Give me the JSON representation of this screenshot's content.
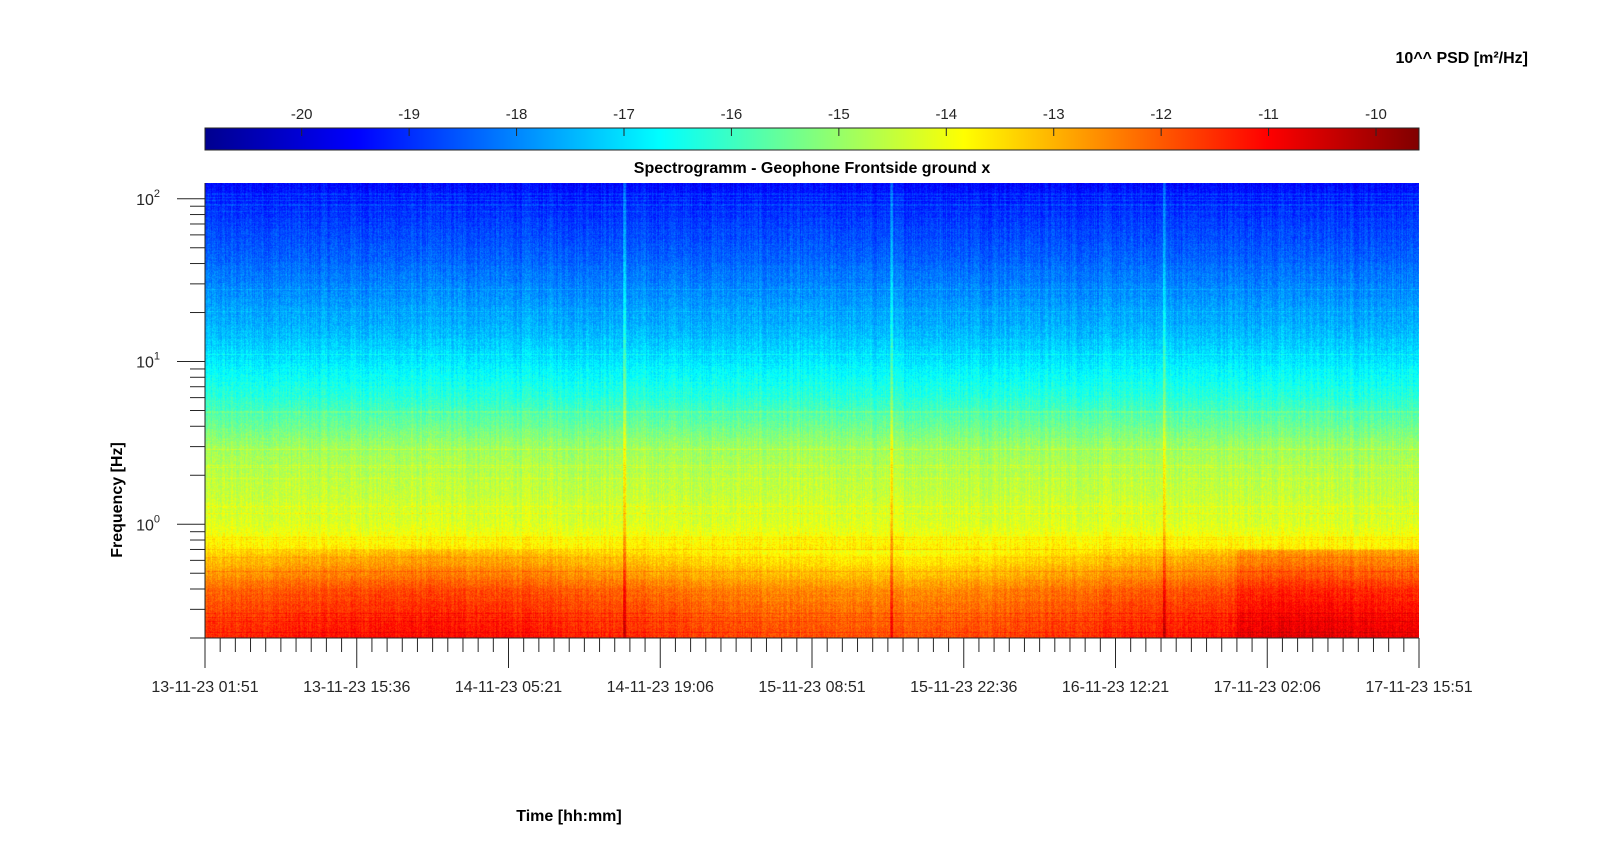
{
  "chart_data": {
    "type": "heatmap",
    "title": "Spectrogramm - Geophone Frontside ground x",
    "xlabel": "Time [hh:mm]",
    "ylabel": "Frequency [Hz]",
    "colorbar_label": "10^^ PSD [m²/Hz]",
    "colormap": "jet",
    "yscale": "log",
    "ylim": [
      0.2,
      125
    ],
    "clim": [
      -20.9,
      -9.6
    ],
    "x_tick_labels": [
      "13-11-23 01:51",
      "13-11-23 15:36",
      "14-11-23 05:21",
      "14-11-23 19:06",
      "15-11-23 08:51",
      "15-11-23 22:36",
      "16-11-23 12:21",
      "17-11-23 02:06",
      "17-11-23 15:51"
    ],
    "y_ticks": [
      {
        "base": "10",
        "exp": "0",
        "value": 1
      },
      {
        "base": "10",
        "exp": "1",
        "value": 10
      },
      {
        "base": "10",
        "exp": "2",
        "value": 100
      }
    ],
    "colorbar_ticks": [
      "-20",
      "-19",
      "-18",
      "-17",
      "-16",
      "-15",
      "-14",
      "-13",
      "-12",
      "-11",
      "-10"
    ],
    "colorbar_tick_values": [
      -20,
      -19,
      -18,
      -17,
      -16,
      -15,
      -14,
      -13,
      -12,
      -11,
      -10
    ],
    "psd_profile": [
      {
        "freq_hz": 0.2,
        "log10_psd": -11.5
      },
      {
        "freq_hz": 0.4,
        "log10_psd": -12.2
      },
      {
        "freq_hz": 0.7,
        "log10_psd": -13.6
      },
      {
        "freq_hz": 1.0,
        "log10_psd": -14.2
      },
      {
        "freq_hz": 3.0,
        "log10_psd": -14.9
      },
      {
        "freq_hz": 6.0,
        "log10_psd": -16.2
      },
      {
        "freq_hz": 15.0,
        "log10_psd": -17.4
      },
      {
        "freq_hz": 40.0,
        "log10_psd": -18.3
      },
      {
        "freq_hz": 80.0,
        "log10_psd": -18.9
      },
      {
        "freq_hz": 125.0,
        "log10_psd": -19.4
      }
    ],
    "grid": false,
    "colorbar_position": "top"
  }
}
